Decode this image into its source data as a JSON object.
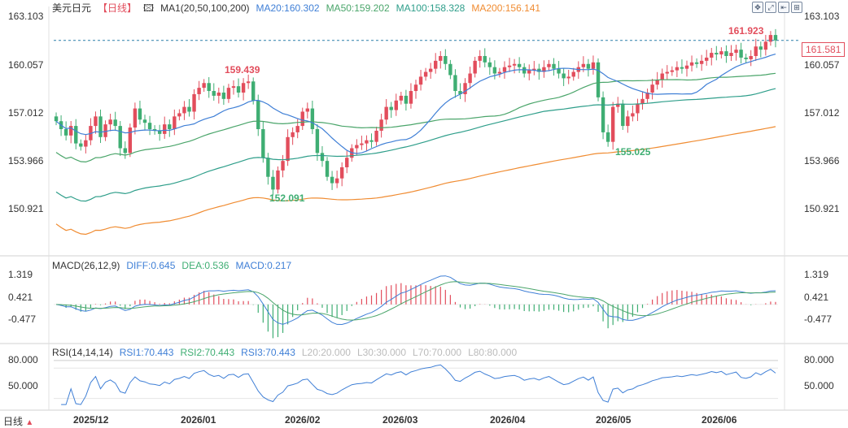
{
  "header": {
    "symbol": "美元日元",
    "period": "【日线】",
    "ma_label": "MA1(20,50,100,200)",
    "ma20": "MA20:160.302",
    "ma50": "MA50:159.202",
    "ma100": "MA100:158.328",
    "ma200": "MA200:156.141"
  },
  "toolbar": {
    "icons": [
      "move-icon",
      "expand-icon",
      "back-icon",
      "settings-icon"
    ],
    "glyphs": [
      "✥",
      "⤢",
      "⇤",
      "⊞"
    ]
  },
  "price_axis": {
    "ticks": [
      "163.103",
      "160.057",
      "157.012",
      "153.966",
      "150.921"
    ],
    "min": 149.0,
    "max": 163.103
  },
  "last_price": "161.581",
  "annotations": {
    "high1": "159.439",
    "low1": "152.091",
    "low2": "155.025",
    "high2": "161.923"
  },
  "macd": {
    "label": "MACD(26,12,9)",
    "diff": "DIFF:0.645",
    "dea": "DEA:0.536",
    "macd": "MACD:0.217",
    "ticks": [
      "1.319",
      "0.421",
      "-0.477"
    ]
  },
  "rsi": {
    "label": "RSI(14,14,14)",
    "rsi1": "RSI1:70.443",
    "rsi2": "RSI2:70.443",
    "rsi3": "RSI3:70.443",
    "l20": "L20:20.000",
    "l30": "L30:30.000",
    "l70": "L70:70.000",
    "l80": "L80:80.000",
    "ticks": [
      "80.000",
      "50.000"
    ]
  },
  "x_axis": [
    "2025/12",
    "2026/01",
    "2026/02",
    "2026/03",
    "2026/04",
    "2026/05",
    "2026/06"
  ],
  "footer": {
    "text": "日线",
    "arrow": "▲"
  },
  "colors": {
    "up": "#e24d5c",
    "down": "#3fae73",
    "ma20": "#3f7fd6",
    "ma50": "#4aa56a",
    "ma100": "#2e9e8a",
    "ma200": "#f08c32",
    "grid": "#e6e6e6"
  },
  "chart_data": {
    "type": "candlestick",
    "closes": [
      156.5,
      156.0,
      155.6,
      156.2,
      155.1,
      154.9,
      155.3,
      156.2,
      156.8,
      155.5,
      156.3,
      156.6,
      156.2,
      154.8,
      154.5,
      156.1,
      157.3,
      156.6,
      156.4,
      156.0,
      155.9,
      155.7,
      156.3,
      156.0,
      156.8,
      157.0,
      157.4,
      157.1,
      158.2,
      158.6,
      158.9,
      158.4,
      158.1,
      158.3,
      157.9,
      158.6,
      158.7,
      158.3,
      158.9,
      159.0,
      157.8,
      156.0,
      154.2,
      153.0,
      152.2,
      153.4,
      154.0,
      155.5,
      155.8,
      156.2,
      157.1,
      157.3,
      156.0,
      154.5,
      154.0,
      153.0,
      152.6,
      152.9,
      153.6,
      154.2,
      154.8,
      155.0,
      155.1,
      155.3,
      155.2,
      155.9,
      156.6,
      157.4,
      157.2,
      157.8,
      158.1,
      157.6,
      158.4,
      158.8,
      159.3,
      159.6,
      159.8,
      160.3,
      160.6,
      160.1,
      159.4,
      158.4,
      158.2,
      158.9,
      159.5,
      160.3,
      160.6,
      160.2,
      159.9,
      159.5,
      159.6,
      159.9,
      160.0,
      160.1,
      159.9,
      159.5,
      159.7,
      159.8,
      159.6,
      159.9,
      160.1,
      159.8,
      159.5,
      159.2,
      159.3,
      159.6,
      159.9,
      160.1,
      159.8,
      160.2,
      158.0,
      155.8,
      155.2,
      157.4,
      157.6,
      156.2,
      156.8,
      157.0,
      157.6,
      157.9,
      158.3,
      158.8,
      159.1,
      159.5,
      159.6,
      159.7,
      159.9,
      159.8,
      160.0,
      160.2,
      160.1,
      160.3,
      160.5,
      160.8,
      160.7,
      160.9,
      160.6,
      160.8,
      161.0,
      160.5,
      160.4,
      160.6,
      161.2,
      161.0,
      161.5,
      161.923,
      161.581
    ]
  }
}
